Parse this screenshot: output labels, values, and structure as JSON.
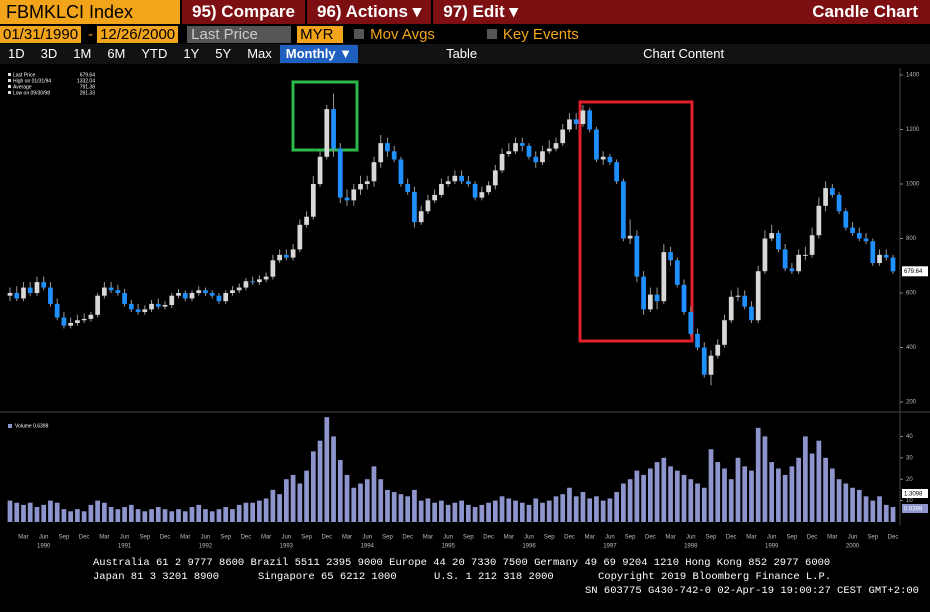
{
  "header": {
    "ticker": "FBMKLCI Index",
    "menu": [
      "95) Compare",
      "96) Actions ▾",
      "97) Edit ▾"
    ],
    "title": "Candle Chart"
  },
  "controls": {
    "start": "01/31/1990",
    "dash": "-",
    "end": "12/26/2000",
    "field": "Last Price",
    "currency": "MYR",
    "mov_avgs": "Mov Avgs",
    "key_events": "Key Events"
  },
  "toolbar": {
    "ranges": [
      "1D",
      "3D",
      "1M",
      "6M",
      "YTD",
      "1Y",
      "5Y",
      "Max"
    ],
    "period": "Monthly ▼",
    "table": "Table",
    "chart_content": "Chart Content"
  },
  "chart_data": {
    "type": "candlestick",
    "legend": [
      {
        "label": "Last Price",
        "value": "679.64"
      },
      {
        "label": "High on 01/31/94",
        "value": "1332.04"
      },
      {
        "label": "Average",
        "value": "791.38"
      },
      {
        "label": "Low on 09/30/98",
        "value": "261.33"
      }
    ],
    "up_color": "#d8d8d8",
    "down_color": "#1e90ff",
    "volume_color": "#8e94cc",
    "categories": [
      null,
      null,
      "Mar",
      null,
      null,
      "Jun",
      null,
      null,
      "Sep",
      null,
      null,
      "Dec",
      null,
      null,
      "Mar",
      null,
      null,
      "Jun",
      null,
      null,
      "Sep",
      null,
      null,
      "Dec",
      null,
      null,
      "Mar",
      null,
      null,
      "Jun",
      null,
      null,
      "Sep",
      null,
      null,
      "Dec",
      null,
      null,
      "Mar",
      null,
      null,
      "Jun",
      null,
      null,
      "Sep",
      null,
      null,
      "Dec",
      null,
      null,
      "Mar",
      null,
      null,
      "Jun",
      null,
      null,
      "Sep",
      null,
      null,
      "Dec",
      null,
      null,
      "Mar",
      null,
      null,
      "Jun",
      null,
      null,
      "Sep",
      null,
      null,
      "Dec",
      null,
      null,
      "Mar",
      null,
      null,
      "Jun",
      null,
      null,
      "Sep",
      null,
      null,
      "Dec",
      null,
      null,
      "Mar",
      null,
      null,
      "Jun",
      null,
      null,
      "Sep",
      null,
      null,
      "Dec",
      null,
      null,
      "Mar",
      null,
      null,
      "Jun",
      null,
      null,
      "Sep",
      null,
      null,
      "Dec",
      null,
      null,
      "Mar",
      null,
      null,
      "Jun",
      null,
      null,
      "Sep",
      null,
      null,
      "Dec",
      null,
      null,
      "Mar",
      null,
      null,
      "Jun",
      null,
      null,
      "Sep",
      null,
      null,
      "Dec"
    ],
    "years": [
      "1990",
      "1991",
      "1992",
      "1993",
      "1994",
      "1995",
      "1996",
      "1997",
      "1998",
      "1999",
      "2000"
    ],
    "open": [
      590,
      600,
      580,
      620,
      600,
      640,
      620,
      560,
      510,
      480,
      490,
      500,
      505,
      520,
      590,
      620,
      610,
      600,
      560,
      540,
      530,
      540,
      560,
      550,
      556,
      590,
      600,
      580,
      600,
      610,
      600,
      590,
      570,
      600,
      610,
      620,
      643,
      640,
      650,
      660,
      720,
      740,
      730,
      760,
      850,
      880,
      1000,
      1100,
      1275,
      1130,
      950,
      940,
      980,
      1000,
      1010,
      1080,
      1150,
      1120,
      1090,
      1000,
      971,
      860,
      900,
      940,
      960,
      1000,
      1010,
      1030,
      1010,
      1000,
      950,
      970,
      995,
      1050,
      1110,
      1120,
      1150,
      1140,
      1100,
      1080,
      1120,
      1130,
      1150,
      1200,
      1237,
      1220,
      1270,
      1200,
      1090,
      1100,
      1080,
      1010,
      800,
      810,
      660,
      540,
      594,
      570,
      750,
      720,
      630,
      530,
      450,
      400,
      300,
      370,
      410,
      500,
      586,
      590,
      550,
      500,
      680,
      800,
      820,
      760,
      690,
      680,
      740,
      740,
      812,
      920,
      985,
      960,
      900,
      840,
      820,
      800,
      790,
      710,
      740,
      730
    ],
    "high": [
      620,
      625,
      640,
      640,
      660,
      660,
      640,
      580,
      530,
      510,
      520,
      525,
      530,
      600,
      640,
      640,
      630,
      615,
      575,
      560,
      555,
      575,
      580,
      570,
      600,
      615,
      610,
      610,
      625,
      620,
      610,
      600,
      610,
      625,
      635,
      655,
      660,
      665,
      675,
      740,
      760,
      760,
      780,
      870,
      900,
      1030,
      1120,
      1290,
      1332.04,
      1150,
      980,
      1000,
      1030,
      1030,
      1100,
      1180,
      1170,
      1140,
      1100,
      1020,
      990,
      920,
      960,
      980,
      1020,
      1030,
      1050,
      1050,
      1030,
      1010,
      990,
      1010,
      1070,
      1130,
      1150,
      1170,
      1170,
      1150,
      1120,
      1140,
      1160,
      1170,
      1220,
      1260,
      1260,
      1290,
      1280,
      1210,
      1120,
      1110,
      1090,
      1020,
      870,
      830,
      680,
      620,
      620,
      780,
      770,
      730,
      650,
      550,
      470,
      420,
      390,
      430,
      520,
      610,
      620,
      610,
      570,
      700,
      830,
      850,
      830,
      780,
      710,
      760,
      770,
      840,
      950,
      1010,
      1000,
      970,
      910,
      860,
      840,
      820,
      800,
      760,
      760,
      740
    ],
    "low": [
      570,
      570,
      570,
      590,
      590,
      610,
      550,
      500,
      470,
      470,
      480,
      490,
      495,
      510,
      580,
      600,
      590,
      550,
      530,
      520,
      520,
      530,
      540,
      540,
      545,
      580,
      570,
      570,
      590,
      590,
      580,
      560,
      560,
      590,
      600,
      610,
      630,
      630,
      640,
      650,
      710,
      720,
      720,
      750,
      840,
      870,
      990,
      1090,
      1100,
      930,
      920,
      920,
      960,
      980,
      990,
      1060,
      1100,
      1080,
      990,
      960,
      840,
      850,
      890,
      930,
      950,
      990,
      1000,
      1000,
      990,
      940,
      940,
      960,
      980,
      1040,
      1100,
      1110,
      1120,
      1090,
      1060,
      1070,
      1110,
      1120,
      1140,
      1190,
      1200,
      1210,
      1190,
      1080,
      1070,
      1070,
      1000,
      790,
      780,
      640,
      520,
      530,
      540,
      560,
      700,
      620,
      520,
      440,
      390,
      290,
      261.33,
      360,
      400,
      490,
      570,
      540,
      490,
      490,
      670,
      790,
      750,
      680,
      670,
      670,
      720,
      730,
      800,
      900,
      950,
      890,
      830,
      810,
      790,
      780,
      700,
      700,
      720,
      670
    ],
    "close": [
      600,
      580,
      620,
      600,
      640,
      620,
      560,
      510,
      480,
      490,
      500,
      505,
      520,
      590,
      620,
      610,
      600,
      560,
      540,
      530,
      540,
      560,
      550,
      556,
      590,
      600,
      580,
      600,
      610,
      600,
      590,
      570,
      600,
      610,
      620,
      643,
      640,
      650,
      660,
      720,
      740,
      730,
      760,
      850,
      880,
      1000,
      1100,
      1275,
      1130,
      950,
      940,
      980,
      1000,
      1010,
      1080,
      1150,
      1120,
      1090,
      1000,
      971,
      860,
      900,
      940,
      960,
      1000,
      1010,
      1030,
      1010,
      1000,
      950,
      970,
      995,
      1050,
      1110,
      1120,
      1150,
      1140,
      1100,
      1080,
      1120,
      1130,
      1150,
      1200,
      1237,
      1220,
      1270,
      1200,
      1090,
      1100,
      1080,
      1010,
      800,
      810,
      660,
      540,
      594,
      570,
      750,
      720,
      630,
      530,
      450,
      400,
      300,
      370,
      410,
      500,
      586,
      590,
      550,
      500,
      680,
      800,
      820,
      760,
      690,
      680,
      740,
      740,
      812,
      920,
      985,
      960,
      900,
      840,
      820,
      800,
      790,
      710,
      740,
      730,
      679.64
    ],
    "volume": [
      10,
      9,
      8,
      9,
      7,
      8,
      10,
      9,
      6,
      5,
      6,
      5,
      8,
      10,
      9,
      7,
      6,
      7,
      8,
      6,
      5,
      6,
      7,
      6,
      5,
      6,
      5,
      7,
      8,
      6,
      5,
      6,
      7,
      6,
      8,
      9,
      9,
      10,
      11,
      15,
      13,
      20,
      22,
      18,
      24,
      33,
      38,
      49,
      40,
      29,
      22,
      16,
      18,
      20,
      26,
      20,
      15,
      14,
      13,
      12,
      15,
      10,
      11,
      9,
      10,
      8,
      9,
      10,
      8,
      7,
      8,
      9,
      10,
      12,
      11,
      10,
      9,
      8,
      11,
      9,
      10,
      12,
      13,
      16,
      12,
      14,
      11,
      12,
      10,
      11,
      14,
      18,
      20,
      24,
      22,
      25,
      28,
      30,
      26,
      24,
      22,
      20,
      18,
      16,
      34,
      28,
      25,
      20,
      30,
      26,
      24,
      44,
      40,
      28,
      25,
      22,
      26,
      30,
      40,
      32,
      38,
      30,
      25,
      20,
      18,
      16,
      15,
      12,
      10,
      12,
      8,
      7
    ],
    "ylim": [
      200,
      1400
    ],
    "yticks": [
      200,
      400,
      600,
      800,
      1000,
      1200,
      1400
    ],
    "volume_ylim": [
      0,
      50
    ],
    "volume_yticks": [
      10,
      20,
      30,
      40
    ],
    "volume_legend": "Volume 0.6398",
    "volume_tags": [
      "1.3098",
      "0.6398"
    ]
  },
  "footer": {
    "line1": "Australia 61 2 9777 8600 Brazil 5511 2395 9000 Europe 44 20 7330 7500 Germany 49 69 9204 1210 Hong Kong 852 2977 6000",
    "line2": [
      "Japan 81 3 3201 8900",
      "Singapore 65 6212 1000",
      "U.S. 1 212 318 2000",
      "Copyright 2019 Bloomberg Finance L.P."
    ],
    "line3": "SN 603775 G430-742-0 02-Apr-19 19:00:27 CEST GMT+2:00"
  }
}
